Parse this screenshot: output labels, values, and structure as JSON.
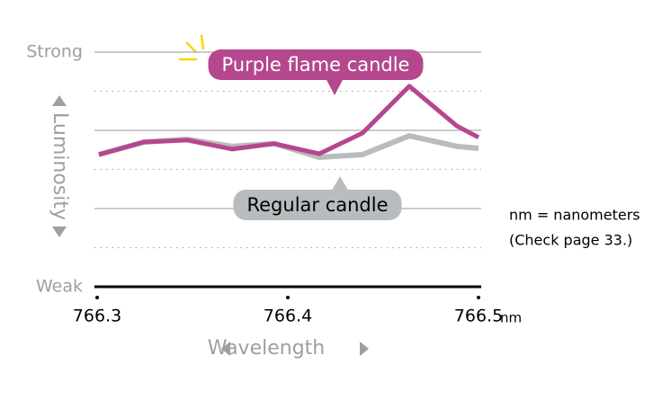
{
  "chart_data": {
    "type": "line",
    "x": [
      766.3009,
      766.3245,
      766.3472,
      766.3708,
      766.3929,
      766.4165,
      766.4392,
      766.4637,
      766.4887,
      766.5
    ],
    "series": [
      {
        "name": "Regular candle",
        "color": "#b9bcbe",
        "values": [
          3.38,
          3.7,
          3.77,
          3.59,
          3.66,
          3.31,
          3.38,
          3.86,
          3.59,
          3.54
        ]
      },
      {
        "name": "Purple flame candle",
        "color": "#b5478f",
        "values": [
          3.38,
          3.7,
          3.75,
          3.52,
          3.66,
          3.4,
          3.93,
          5.13,
          4.11,
          3.82
        ]
      }
    ],
    "xlim": [
      766.3,
      766.5
    ],
    "xticks": [
      766.3,
      766.4,
      766.5
    ],
    "x_unit": "nm",
    "ylim": [
      0,
      6
    ],
    "yticks": [
      {
        "value": 0,
        "label": "Weak"
      },
      {
        "value": 6,
        "label": "Strong"
      }
    ],
    "grid_solid": [
      2,
      4,
      6
    ],
    "grid_dotted": [
      1,
      3,
      5
    ],
    "y_label": "Luminosity",
    "x_label": "Wavelength",
    "notes": [
      "nm = nanometers",
      "(Check page 33.)"
    ]
  }
}
